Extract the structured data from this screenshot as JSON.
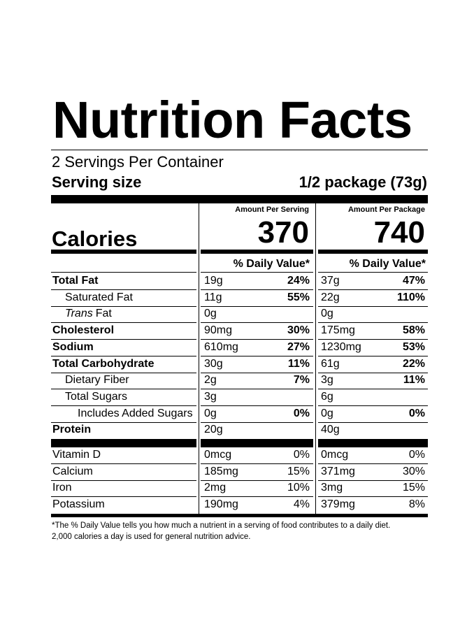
{
  "header": {
    "title": "Nutrition Facts",
    "servings": "2 Servings Per Container",
    "serving_size_label": "Serving size",
    "serving_size": "1/2 package (73g)"
  },
  "calories": {
    "label": "Calories",
    "columns": [
      {
        "heading": "Amount Per Serving",
        "value": "370"
      },
      {
        "heading": "Amount Per Package",
        "value": "740"
      }
    ]
  },
  "dv_heading": "% Daily Value*",
  "nutrients": [
    {
      "name": "Total Fat",
      "bold": true,
      "indent": 0,
      "serving": {
        "amount": "19g",
        "dv": "24%"
      },
      "package": {
        "amount": "37g",
        "dv": "47%"
      }
    },
    {
      "name": "Saturated Fat",
      "bold": false,
      "indent": 1,
      "serving": {
        "amount": "11g",
        "dv": "55%"
      },
      "package": {
        "amount": "22g",
        "dv": "110%"
      }
    },
    {
      "name_italic": "Trans",
      "name": "Fat",
      "bold": false,
      "indent": 1,
      "serving": {
        "amount": "0g"
      },
      "package": {
        "amount": "0g"
      }
    },
    {
      "name": "Cholesterol",
      "bold": true,
      "indent": 0,
      "serving": {
        "amount": "90mg",
        "dv": "30%"
      },
      "package": {
        "amount": "175mg",
        "dv": "58%"
      }
    },
    {
      "name": "Sodium",
      "bold": true,
      "indent": 0,
      "serving": {
        "amount": "610mg",
        "dv": "27%"
      },
      "package": {
        "amount": "1230mg",
        "dv": "53%"
      }
    },
    {
      "name": "Total Carbohydrate",
      "bold": true,
      "indent": 0,
      "serving": {
        "amount": "30g",
        "dv": "11%"
      },
      "package": {
        "amount": "61g",
        "dv": "22%"
      }
    },
    {
      "name": "Dietary Fiber",
      "bold": false,
      "indent": 1,
      "serving": {
        "amount": "2g",
        "dv": "7%"
      },
      "package": {
        "amount": "3g",
        "dv": "11%"
      }
    },
    {
      "name": "Total Sugars",
      "bold": false,
      "indent": 1,
      "serving": {
        "amount": "3g"
      },
      "package": {
        "amount": "6g"
      }
    },
    {
      "name": "Includes Added Sugars",
      "bold": false,
      "indent": 2,
      "serving": {
        "amount": "0g",
        "dv": "0%"
      },
      "package": {
        "amount": "0g",
        "dv": "0%"
      }
    },
    {
      "name": "Protein",
      "bold": true,
      "indent": 0,
      "serving": {
        "amount": "20g"
      },
      "package": {
        "amount": "40g"
      }
    }
  ],
  "vitamins": [
    {
      "name": "Vitamin D",
      "serving": {
        "amount": "0mcg",
        "dv": "0%"
      },
      "package": {
        "amount": "0mcg",
        "dv": "0%"
      }
    },
    {
      "name": "Calcium",
      "serving": {
        "amount": "185mg",
        "dv": "15%"
      },
      "package": {
        "amount": "371mg",
        "dv": "30%"
      }
    },
    {
      "name": "Iron",
      "serving": {
        "amount": "2mg",
        "dv": "10%"
      },
      "package": {
        "amount": "3mg",
        "dv": "15%"
      }
    },
    {
      "name": "Potassium",
      "serving": {
        "amount": "190mg",
        "dv": "4%"
      },
      "package": {
        "amount": "379mg",
        "dv": "8%"
      }
    }
  ],
  "footnote": [
    "*The % Daily Value tells you how much a nutrient in a serving of food contributes to a daily diet.",
    "2,000 calories a day is used for general nutrition advice."
  ]
}
